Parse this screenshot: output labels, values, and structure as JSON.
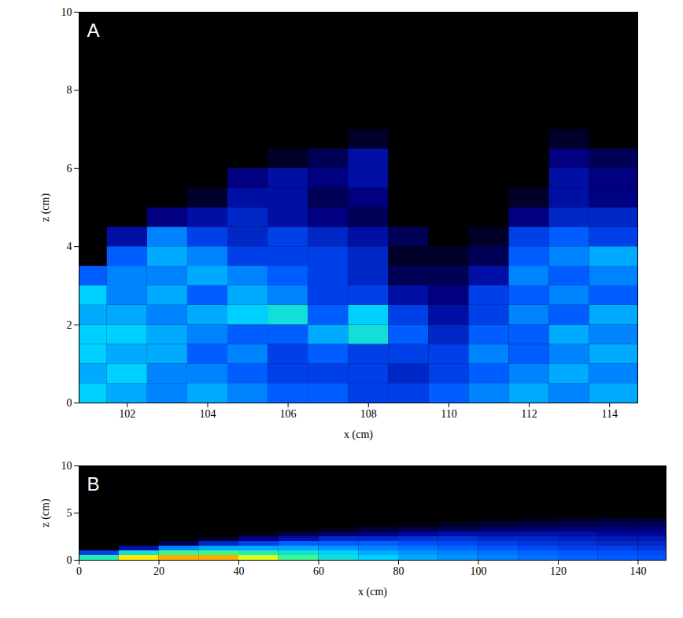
{
  "chart_data": [
    {
      "type": "heatmap",
      "panel_label": "A",
      "x_label": "x (cm)",
      "y_label": "z (cm)",
      "xlim": [
        100.8,
        114.7
      ],
      "ylim": [
        0,
        10
      ],
      "xticks": [
        102,
        104,
        106,
        108,
        110,
        112,
        114
      ],
      "yticks": [
        0,
        2,
        4,
        6,
        8,
        10
      ],
      "clim": [
        0,
        1
      ],
      "x_edges": [
        100.8,
        101.5,
        102.5,
        103.5,
        104.5,
        105.5,
        106.5,
        107.5,
        108.5,
        109.5,
        110.5,
        111.5,
        112.5,
        113.5,
        114.7
      ],
      "z_edges": [
        0,
        0.5,
        1,
        1.5,
        2,
        2.5,
        3,
        3.5,
        4,
        4.5,
        5,
        5.5,
        6,
        6.5,
        7
      ],
      "values": [
        [
          0.5,
          0.45,
          0.4,
          0.45,
          0.4,
          0.35,
          0.35,
          0.3,
          0.3,
          0.35,
          0.4,
          0.45,
          0.4,
          0.45
        ],
        [
          0.45,
          0.5,
          0.4,
          0.4,
          0.35,
          0.3,
          0.3,
          0.3,
          0.25,
          0.3,
          0.35,
          0.4,
          0.45,
          0.4
        ],
        [
          0.5,
          0.45,
          0.45,
          0.35,
          0.4,
          0.3,
          0.35,
          0.3,
          0.3,
          0.3,
          0.4,
          0.35,
          0.4,
          0.45
        ],
        [
          0.5,
          0.5,
          0.45,
          0.4,
          0.35,
          0.35,
          0.45,
          0.55,
          0.35,
          0.25,
          0.35,
          0.35,
          0.45,
          0.4
        ],
        [
          0.45,
          0.45,
          0.4,
          0.45,
          0.5,
          0.55,
          0.35,
          0.5,
          0.3,
          0.2,
          0.3,
          0.4,
          0.35,
          0.45
        ],
        [
          0.5,
          0.4,
          0.45,
          0.35,
          0.45,
          0.4,
          0.3,
          0.3,
          0.2,
          0.15,
          0.3,
          0.35,
          0.4,
          0.35
        ],
        [
          0.35,
          0.4,
          0.4,
          0.45,
          0.4,
          0.35,
          0.3,
          0.25,
          0.1,
          0.1,
          0.2,
          0.4,
          0.35,
          0.4
        ],
        [
          0,
          0.35,
          0.45,
          0.4,
          0.3,
          0.3,
          0.3,
          0.25,
          0.05,
          0.05,
          0.1,
          0.35,
          0.4,
          0.45
        ],
        [
          0,
          0.2,
          0.4,
          0.3,
          0.25,
          0.3,
          0.25,
          0.2,
          0.1,
          0,
          0.05,
          0.3,
          0.35,
          0.3
        ],
        [
          0,
          0,
          0.15,
          0.2,
          0.25,
          0.2,
          0.15,
          0.1,
          0,
          0,
          0,
          0.15,
          0.25,
          0.25
        ],
        [
          0,
          0,
          0,
          0.05,
          0.2,
          0.2,
          0.1,
          0.15,
          0,
          0,
          0,
          0.05,
          0.2,
          0.15
        ],
        [
          0,
          0,
          0,
          0,
          0.15,
          0.2,
          0.15,
          0.2,
          0,
          0,
          0,
          0,
          0.2,
          0.15
        ],
        [
          0,
          0,
          0,
          0,
          0,
          0.05,
          0.1,
          0.2,
          0,
          0,
          0,
          0,
          0.15,
          0.1
        ],
        [
          0,
          0,
          0,
          0,
          0,
          0,
          0,
          0.05,
          0,
          0,
          0,
          0,
          0.05,
          0
        ]
      ]
    },
    {
      "type": "heatmap",
      "panel_label": "B",
      "x_label": "x (cm)",
      "y_label": "z (cm)",
      "xlim": [
        0,
        147
      ],
      "ylim": [
        0,
        10
      ],
      "xticks": [
        0,
        20,
        40,
        60,
        80,
        100,
        120,
        140
      ],
      "yticks": [
        0,
        5,
        10
      ],
      "clim": [
        0,
        1
      ],
      "x_edges": [
        0,
        10,
        20,
        30,
        40,
        50,
        60,
        70,
        80,
        90,
        100,
        110,
        120,
        130,
        140,
        147
      ],
      "z_edges": [
        0,
        0.5,
        1,
        1.5,
        2,
        2.5,
        3,
        3.5,
        4,
        4.5
      ],
      "values": [
        [
          0.6,
          0.85,
          0.9,
          0.9,
          0.8,
          0.65,
          0.55,
          0.5,
          0.45,
          0.42,
          0.4,
          0.38,
          0.36,
          0.35,
          0.34
        ],
        [
          0.3,
          0.55,
          0.65,
          0.65,
          0.6,
          0.55,
          0.5,
          0.45,
          0.42,
          0.4,
          0.38,
          0.36,
          0.34,
          0.33,
          0.32
        ],
        [
          0,
          0.2,
          0.4,
          0.45,
          0.45,
          0.45,
          0.42,
          0.4,
          0.38,
          0.36,
          0.34,
          0.32,
          0.3,
          0.3,
          0.28
        ],
        [
          0,
          0,
          0.1,
          0.25,
          0.3,
          0.35,
          0.35,
          0.35,
          0.33,
          0.32,
          0.3,
          0.28,
          0.27,
          0.25,
          0.25
        ],
        [
          0,
          0,
          0,
          0.05,
          0.15,
          0.2,
          0.25,
          0.25,
          0.27,
          0.27,
          0.25,
          0.25,
          0.23,
          0.22,
          0.22
        ],
        [
          0,
          0,
          0,
          0,
          0.02,
          0.08,
          0.12,
          0.15,
          0.18,
          0.2,
          0.2,
          0.2,
          0.2,
          0.18,
          0.18
        ],
        [
          0,
          0,
          0,
          0,
          0,
          0,
          0.03,
          0.06,
          0.08,
          0.1,
          0.12,
          0.13,
          0.14,
          0.14,
          0.14
        ],
        [
          0,
          0,
          0,
          0,
          0,
          0,
          0,
          0,
          0.02,
          0.04,
          0.06,
          0.08,
          0.09,
          0.1,
          0.1
        ],
        [
          0,
          0,
          0,
          0,
          0,
          0,
          0,
          0,
          0,
          0,
          0.02,
          0.03,
          0.05,
          0.06,
          0.06
        ]
      ]
    }
  ]
}
